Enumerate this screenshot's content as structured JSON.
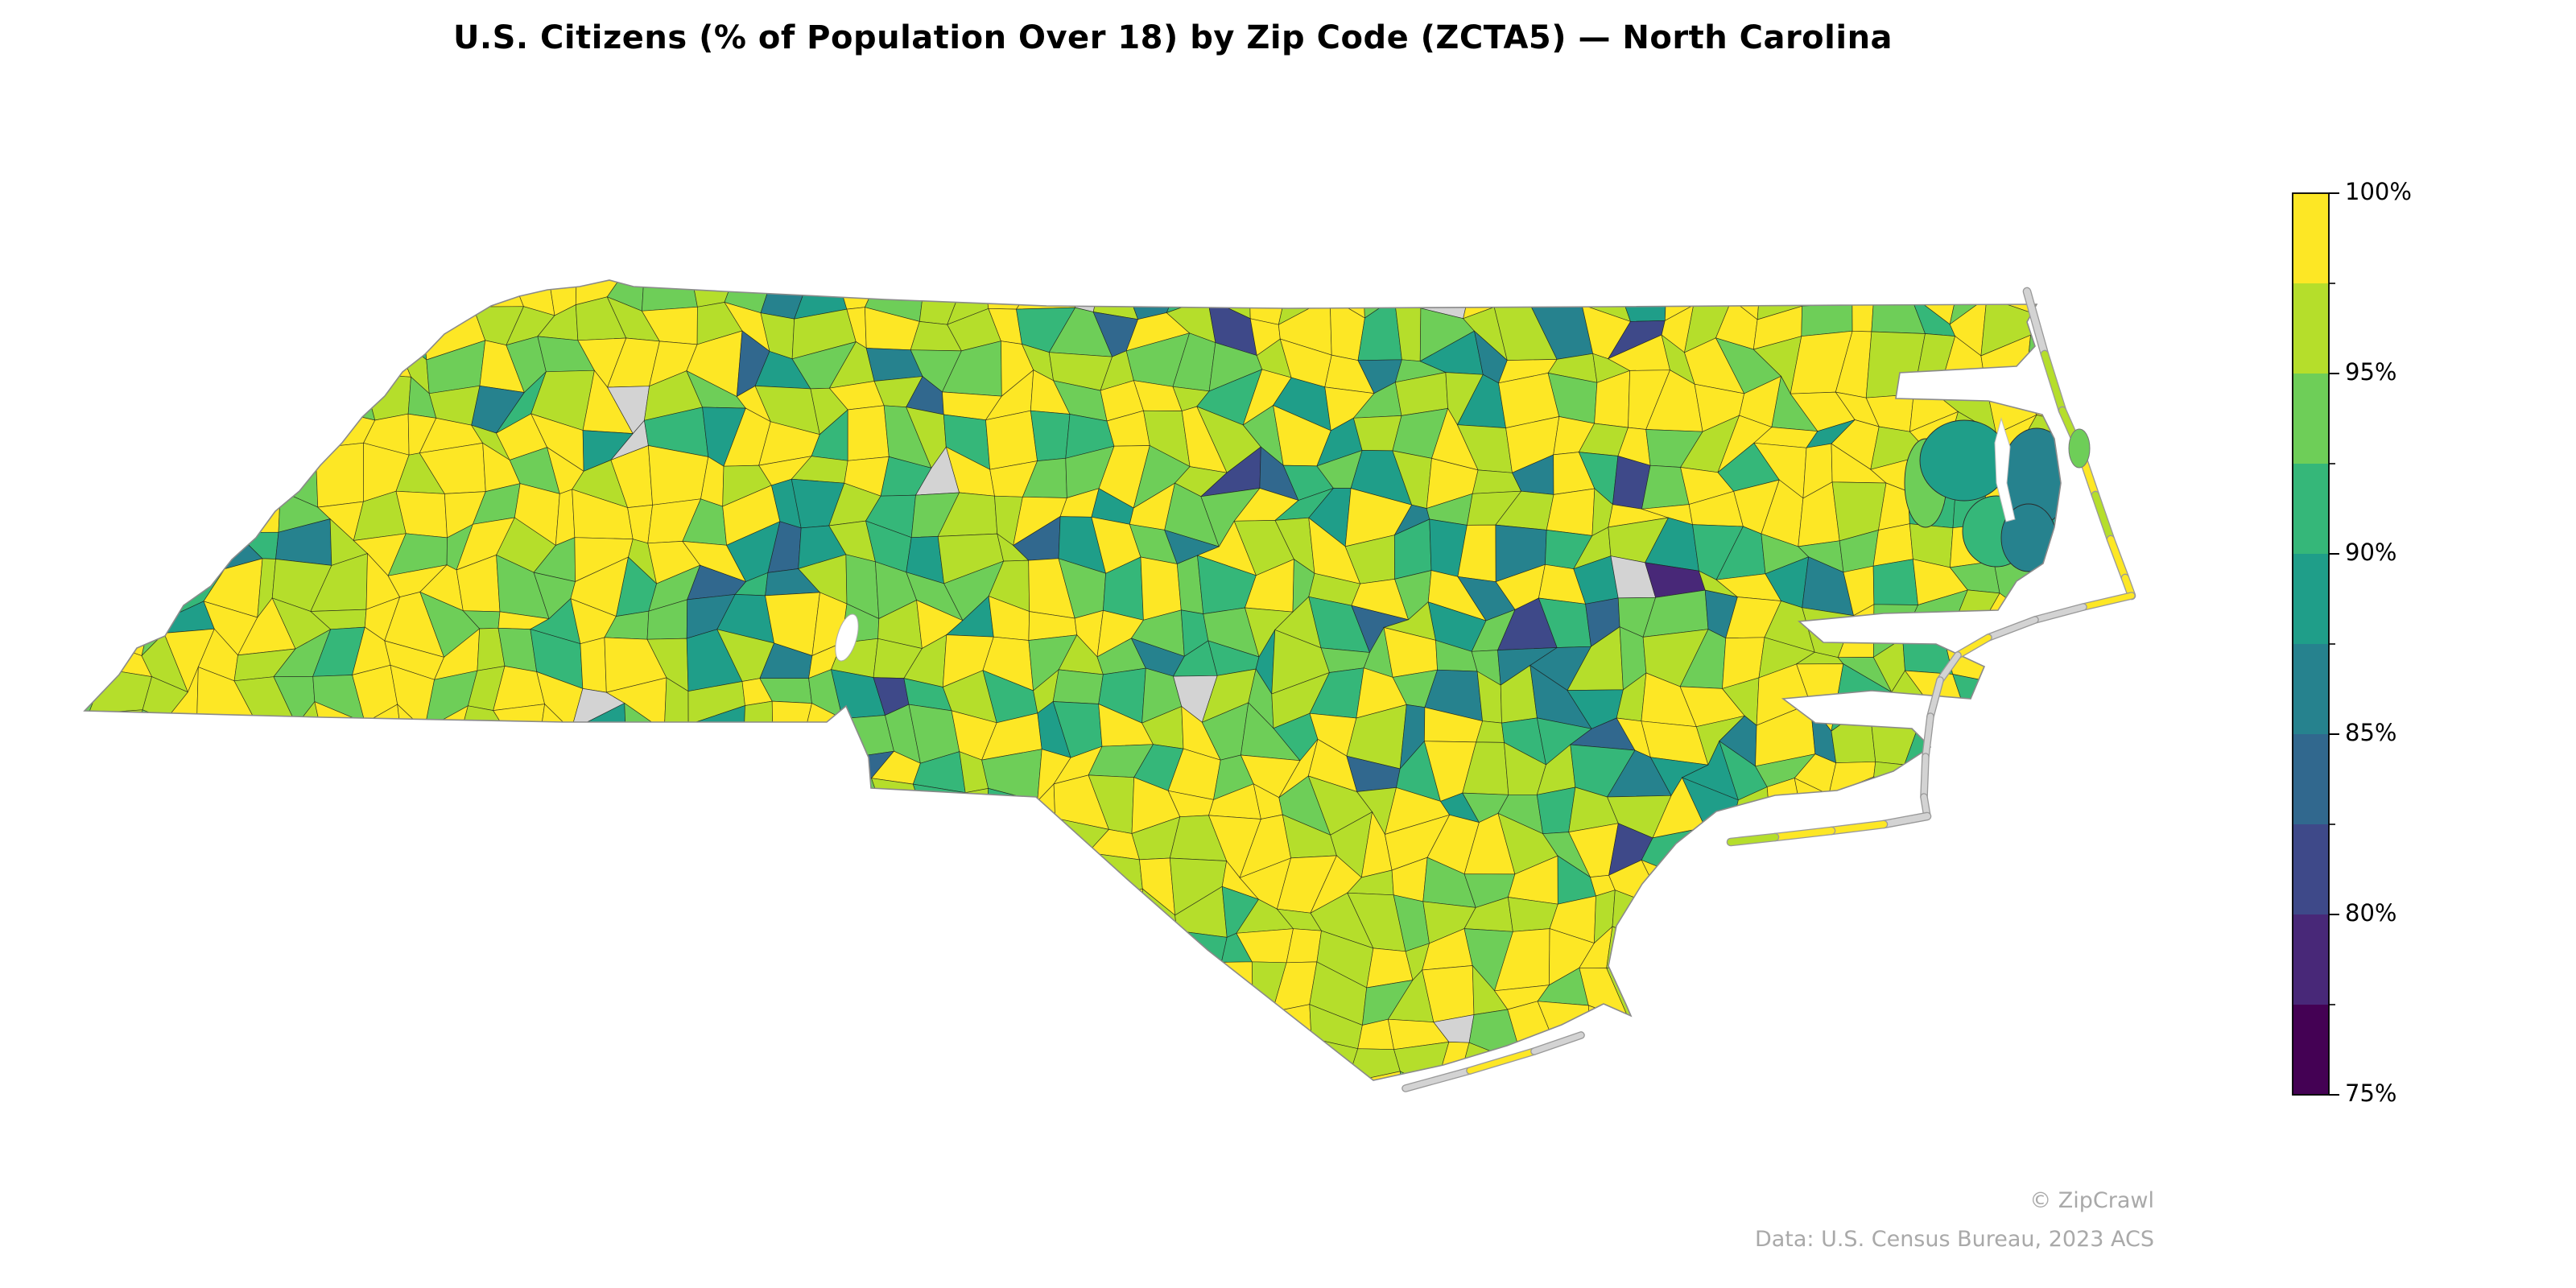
{
  "title": "U.S. Citizens (% of Population Over 18) by Zip Code (ZCTA5) — North Carolina",
  "legend": {
    "tick_labels": [
      "100%",
      "95%",
      "90%",
      "85%",
      "80%",
      "75%"
    ],
    "range_top": "100%",
    "range_bottom": "75%",
    "palette_low_to_high": [
      "#440154",
      "#482878",
      "#3e4989",
      "#31688e",
      "#26828e",
      "#1f9e89",
      "#35b779",
      "#6ece58",
      "#b5de2b",
      "#fde725"
    ],
    "no_data_color": "#d3d3d3",
    "bin_size_percent": 2.5
  },
  "attribution": {
    "line1": "© ZipCrawl",
    "line2": "Data: U.S. Census Bureau, 2023 ACS"
  },
  "map": {
    "region": "North Carolina",
    "geography_unit": "ZCTA5 zip code",
    "metric": "U.S. Citizens (% of Population Over 18)",
    "dominant_value_note": "Most zip codes shade yellow (near 100%); dark viridis clusters (75–85%) appear around the larger metro and military areas; light gray polygons indicate no data; sounds and ocean are white."
  }
}
